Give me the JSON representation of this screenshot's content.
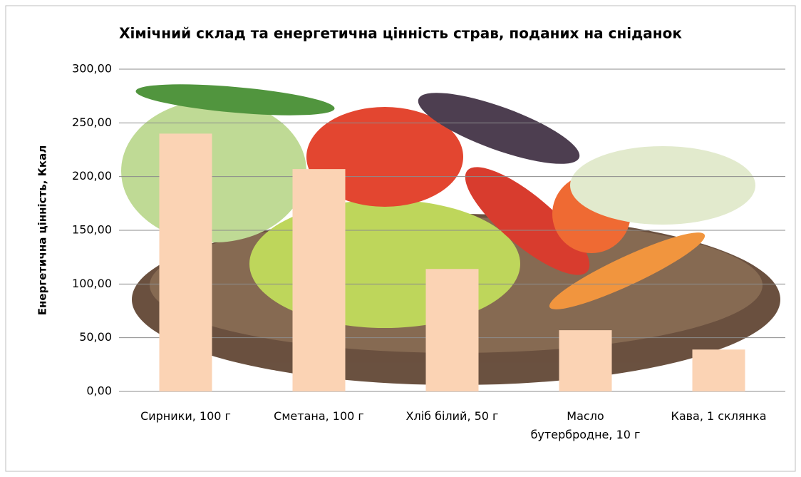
{
  "chart_data": {
    "type": "bar",
    "title": "Хімічний склад та енергетична цінність страв, поданих на сніданок",
    "y_label": "Енергетична цінність,  Ккал",
    "categories": [
      "Сирники, 100 г",
      "Сметана, 100 г",
      "Хліб білий, 50 г",
      "Масло бутербродне, 10 г",
      "Кава, 1 склянка"
    ],
    "values": [
      240,
      207,
      114,
      57,
      39
    ],
    "color": "#fbd3b4",
    "ylim": [
      0,
      300
    ],
    "yticks": [
      {
        "value": 0,
        "label": "0,00"
      },
      {
        "value": 50,
        "label": "50,00"
      },
      {
        "value": 100,
        "label": "100,00"
      },
      {
        "value": 150,
        "label": "150,00"
      },
      {
        "value": 200,
        "label": "200,00"
      },
      {
        "value": 250,
        "label": "250,00"
      },
      {
        "value": 300,
        "label": "300,00"
      }
    ],
    "grid": true
  }
}
